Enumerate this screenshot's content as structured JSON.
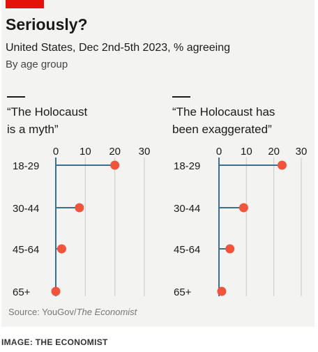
{
  "header": {
    "title": "Seriously?",
    "subtitle": "United States, Dec 2nd-5th 2023, % agreeing",
    "subtitle2": "By age group"
  },
  "colors": {
    "accent": "#e3120b",
    "dot": "#f0553c",
    "stem": "#3b6f8f",
    "grid": "#c8c8c8",
    "background": "#f3f3f1"
  },
  "chart_data": [
    {
      "type": "lollipop",
      "title": "“The Holocaust is a myth”",
      "title_lines": [
        "“The Holocaust",
        "is a myth”"
      ],
      "categories": [
        "18-29",
        "30-44",
        "45-64",
        "65+"
      ],
      "values": [
        20,
        8,
        2,
        0
      ],
      "xlim": [
        0,
        30
      ],
      "xticks": [
        0,
        10,
        20,
        30
      ],
      "grid": true
    },
    {
      "type": "lollipop",
      "title": "“The Holocaust has been exaggerated”",
      "title_lines": [
        "“The Holocaust has",
        "been exaggerated”"
      ],
      "categories": [
        "18-29",
        "30-44",
        "45-64",
        "65+"
      ],
      "values": [
        23,
        9,
        4,
        1
      ],
      "xlim": [
        0,
        30
      ],
      "xticks": [
        0,
        10,
        20,
        30
      ],
      "grid": true
    }
  ],
  "footer": {
    "source_prefix": "Source: YouGov/",
    "source_italic": "The Economist",
    "credit": "IMAGE: THE ECONOMIST"
  }
}
